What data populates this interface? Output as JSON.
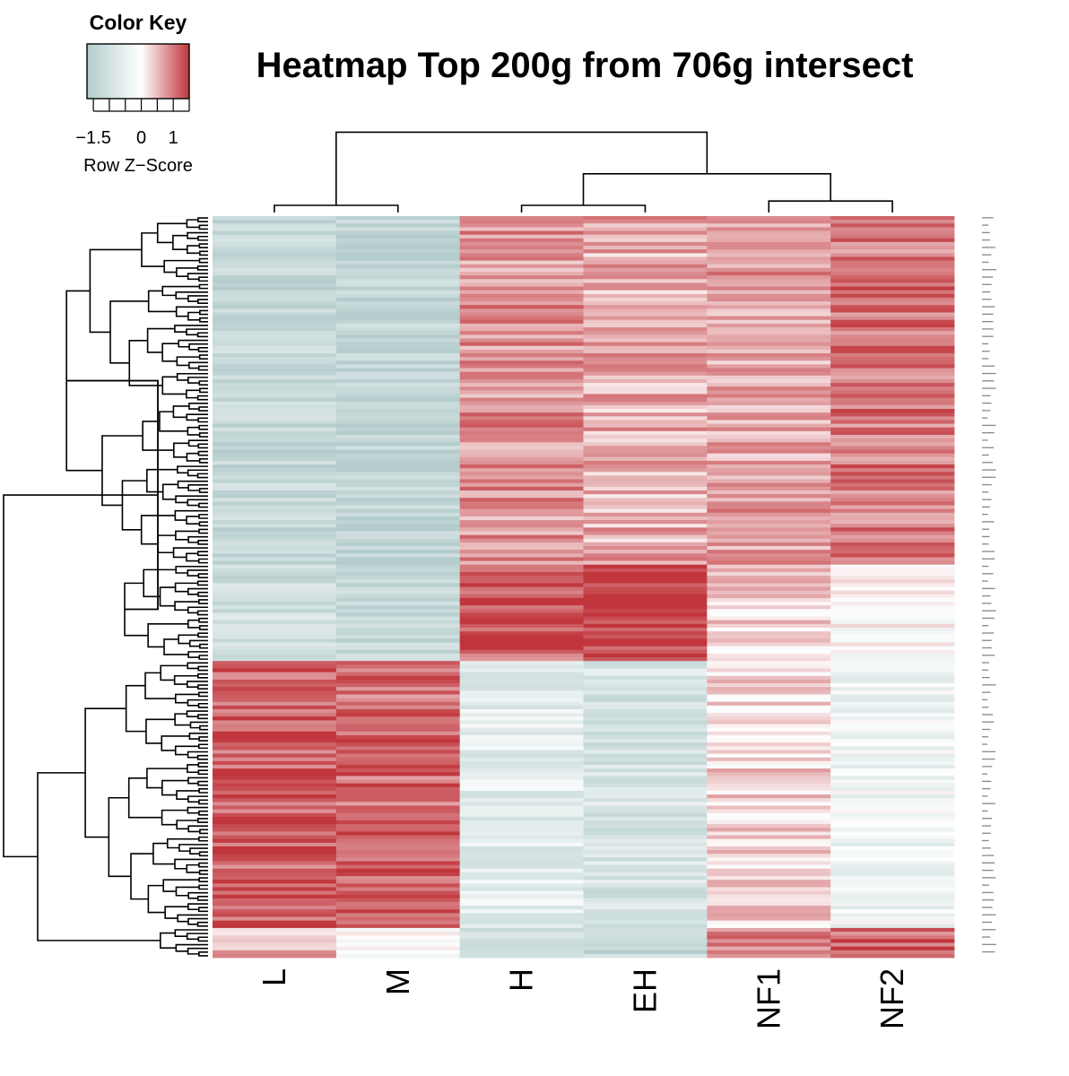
{
  "chart_data": {
    "type": "heatmap",
    "title": "Heatmap Top 200g from 706g intersect",
    "columns": [
      "L",
      "M",
      "H",
      "EH",
      "NF1",
      "NF2"
    ],
    "n_rows": 200,
    "color_key": {
      "title": "Color Key",
      "xlabel": "Row Z−Score",
      "ticks": [
        "−1.5",
        "0",
        "1"
      ],
      "range": [
        -1.7,
        1.5
      ],
      "low_color": "#b4cccc",
      "mid_color": "#ffffff",
      "high_color": "#c0363c"
    },
    "row_blocks": [
      {
        "rows": 94,
        "values": [
          -1.3,
          -1.4,
          0.8,
          0.6,
          0.7,
          1.0
        ]
      },
      {
        "rows": 26,
        "values": [
          -1.1,
          -1.2,
          1.2,
          1.5,
          0.3,
          -0.1
        ]
      },
      {
        "rows": 72,
        "values": [
          1.2,
          1.1,
          -0.6,
          -0.9,
          0.3,
          -0.3
        ]
      },
      {
        "rows": 8,
        "values": [
          0.6,
          0.1,
          -1.2,
          -1.3,
          1.0,
          1.2
        ]
      }
    ],
    "column_dendrogram": {
      "merges": [
        {
          "left": "L",
          "right": "M",
          "height": 0.25
        },
        {
          "left": "H",
          "right": "EH",
          "height": 0.25
        },
        {
          "left": "NF1",
          "right": "NF2",
          "height": 0.4
        },
        {
          "left": "H+EH",
          "right": "NF1+NF2",
          "height": 1.35
        },
        {
          "left": "L+M",
          "right": "H+EH+NF1+NF2",
          "height": 2.8
        }
      ]
    }
  }
}
